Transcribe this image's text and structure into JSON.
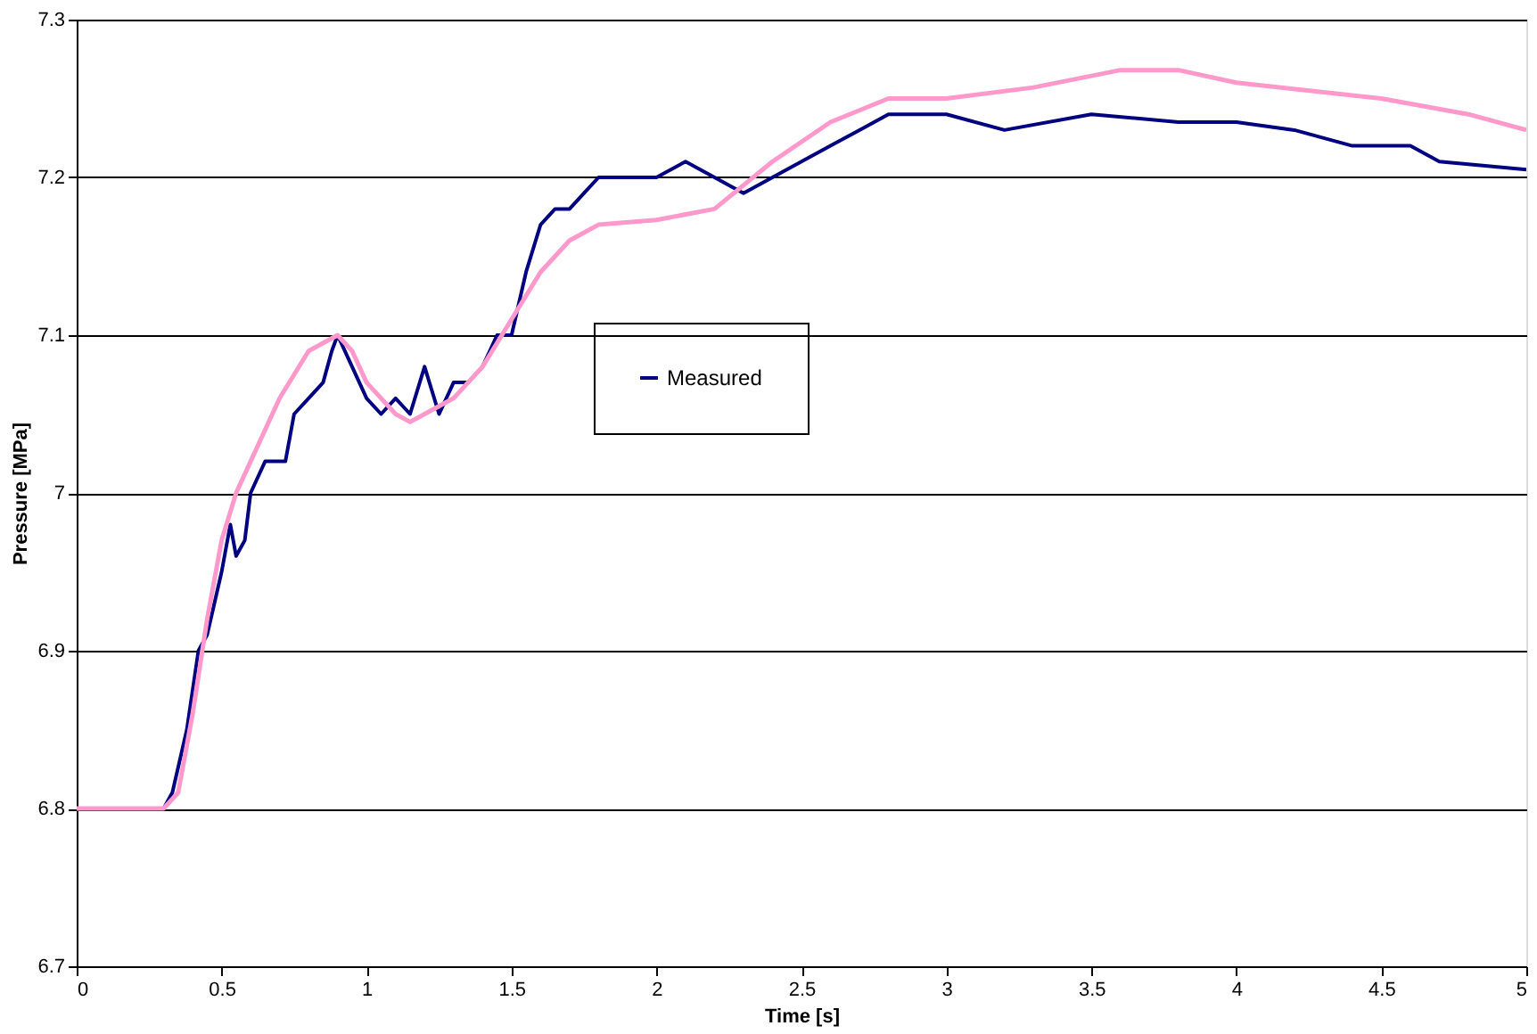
{
  "chart_data": {
    "type": "line",
    "xlabel": "Time [s]",
    "ylabel": "Pressure [MPa]",
    "xlim": [
      0,
      5
    ],
    "xticks": [
      0,
      0.5,
      1,
      1.5,
      2,
      2.5,
      3,
      3.5,
      4,
      4.5,
      5
    ],
    "ylim": [
      6.7,
      7.3
    ],
    "yticks": [
      6.7,
      6.8,
      6.9,
      7,
      7.1,
      7.2,
      7.3
    ],
    "grid": "y",
    "legend": "center",
    "marker": "none",
    "line_style": "solid",
    "series": [
      {
        "name": "Measured",
        "color": "#000080",
        "x": [
          0,
          0.3,
          0.33,
          0.38,
          0.42,
          0.45,
          0.5,
          0.53,
          0.55,
          0.58,
          0.6,
          0.65,
          0.72,
          0.75,
          0.8,
          0.85,
          0.88,
          0.9,
          0.95,
          1.0,
          1.05,
          1.1,
          1.15,
          1.2,
          1.25,
          1.3,
          1.35,
          1.4,
          1.45,
          1.5,
          1.55,
          1.6,
          1.65,
          1.7,
          1.75,
          1.8,
          1.9,
          2.0,
          2.1,
          2.2,
          2.3,
          2.4,
          2.5,
          2.6,
          2.7,
          2.8,
          2.9,
          3.0,
          3.2,
          3.5,
          3.8,
          4.0,
          4.2,
          4.4,
          4.6,
          4.7,
          5.0
        ],
        "values": [
          6.8,
          6.8,
          6.81,
          6.85,
          6.9,
          6.91,
          6.95,
          6.98,
          6.96,
          6.97,
          7.0,
          7.02,
          7.02,
          7.05,
          7.06,
          7.07,
          7.09,
          7.1,
          7.08,
          7.06,
          7.05,
          7.06,
          7.05,
          7.08,
          7.05,
          7.07,
          7.07,
          7.08,
          7.1,
          7.1,
          7.14,
          7.17,
          7.18,
          7.18,
          7.19,
          7.2,
          7.2,
          7.2,
          7.21,
          7.2,
          7.19,
          7.2,
          7.21,
          7.22,
          7.23,
          7.24,
          7.24,
          7.24,
          7.23,
          7.24,
          7.235,
          7.235,
          7.23,
          7.22,
          7.22,
          7.21,
          7.205
        ]
      },
      {
        "color": "#ff99cc",
        "x": [
          0,
          0.3,
          0.35,
          0.4,
          0.45,
          0.5,
          0.55,
          0.6,
          0.7,
          0.8,
          0.9,
          0.95,
          1.0,
          1.1,
          1.15,
          1.2,
          1.3,
          1.4,
          1.5,
          1.6,
          1.7,
          1.8,
          2.0,
          2.2,
          2.4,
          2.6,
          2.8,
          3.0,
          3.3,
          3.6,
          3.8,
          4.0,
          4.5,
          4.8,
          5.0
        ],
        "values": [
          6.8,
          6.8,
          6.81,
          6.86,
          6.92,
          6.97,
          7.0,
          7.02,
          7.06,
          7.09,
          7.1,
          7.09,
          7.07,
          7.05,
          7.045,
          7.05,
          7.06,
          7.08,
          7.11,
          7.14,
          7.16,
          7.17,
          7.173,
          7.18,
          7.21,
          7.235,
          7.25,
          7.25,
          7.257,
          7.268,
          7.268,
          7.26,
          7.25,
          7.24,
          7.23
        ]
      }
    ]
  }
}
